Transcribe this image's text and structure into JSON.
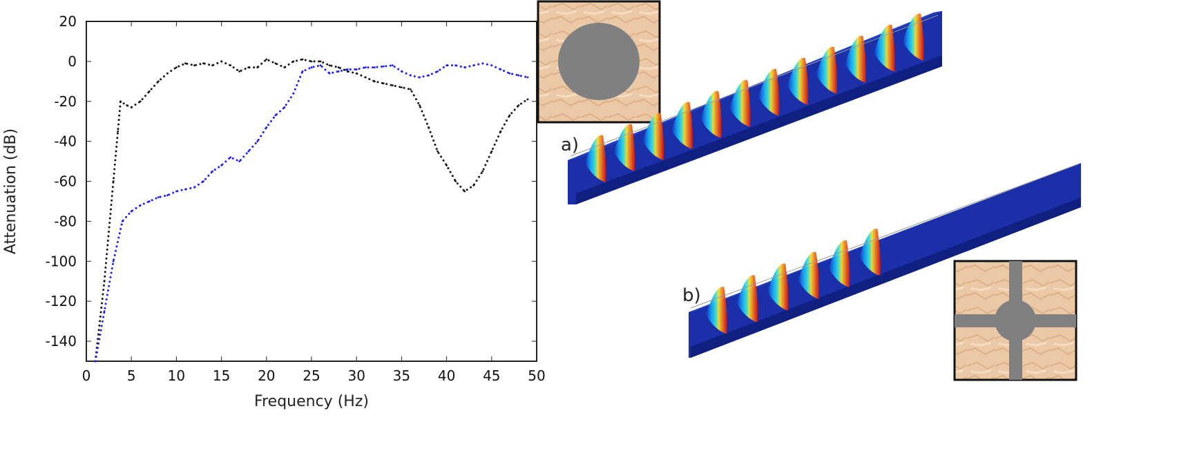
{
  "chart_data": {
    "type": "line",
    "title": "",
    "xlabel": "Frequency (Hz)",
    "ylabel": "Attenuation (dB)",
    "xlim": [
      0,
      50
    ],
    "ylim": [
      -150,
      20
    ],
    "xticks": [
      0,
      5,
      10,
      15,
      20,
      25,
      30,
      35,
      40,
      45,
      50
    ],
    "yticks": [
      20,
      0,
      -20,
      -40,
      -60,
      -80,
      -100,
      -120,
      -140
    ],
    "grid": false,
    "series": [
      {
        "name": "black dotted",
        "color": "#111111",
        "x": [
          1,
          2,
          3,
          3.5,
          3.8,
          4.5,
          5,
          6,
          7,
          8,
          9,
          10,
          11,
          12,
          13,
          14,
          15,
          16,
          17,
          18,
          19,
          20,
          21,
          22,
          23,
          24,
          25,
          26,
          27,
          28,
          29,
          30,
          31,
          32,
          33,
          34,
          35,
          36,
          37,
          38,
          39,
          40,
          41,
          42,
          43,
          44,
          45,
          46,
          47,
          48,
          49
        ],
        "y": [
          -150,
          -110,
          -60,
          -35,
          -20,
          -22,
          -23,
          -20,
          -15,
          -10,
          -6,
          -3,
          -1,
          -2,
          -1,
          -2,
          0,
          -2,
          -5,
          -3,
          -3,
          1,
          -1,
          -3,
          0,
          1,
          0,
          0,
          -2,
          -3,
          -5,
          -6,
          -8,
          -10,
          -11,
          -12,
          -13,
          -14,
          -22,
          -33,
          -45,
          -52,
          -60,
          -65,
          -62,
          -55,
          -45,
          -35,
          -27,
          -22,
          -19
        ]
      },
      {
        "name": "blue dotted",
        "color": "#1a1aff",
        "x": [
          1,
          2,
          3,
          4,
          5,
          6,
          7,
          8,
          9,
          10,
          11,
          12,
          13,
          14,
          15,
          16,
          17,
          18,
          19,
          20,
          21,
          22,
          23,
          24,
          25,
          26,
          27,
          28,
          29,
          30,
          31,
          32,
          33,
          34,
          35,
          36,
          37,
          38,
          39,
          40,
          41,
          42,
          43,
          44,
          45,
          46,
          47,
          48,
          49
        ],
        "y": [
          -150,
          -125,
          -100,
          -80,
          -75,
          -72,
          -70,
          -68,
          -67,
          -65,
          -64,
          -63,
          -60,
          -55,
          -52,
          -48,
          -50,
          -45,
          -40,
          -33,
          -27,
          -23,
          -16,
          -5,
          -3,
          -2,
          -6,
          -5,
          -4,
          -4,
          -3,
          -3,
          -2.5,
          -2,
          -5,
          -7,
          -8,
          -7,
          -5,
          -2,
          -2,
          -3,
          -2,
          -1,
          -2,
          -4,
          -6,
          -7,
          -8
        ]
      }
    ]
  },
  "panels": {
    "a_label": "a)",
    "b_label": "b)"
  }
}
